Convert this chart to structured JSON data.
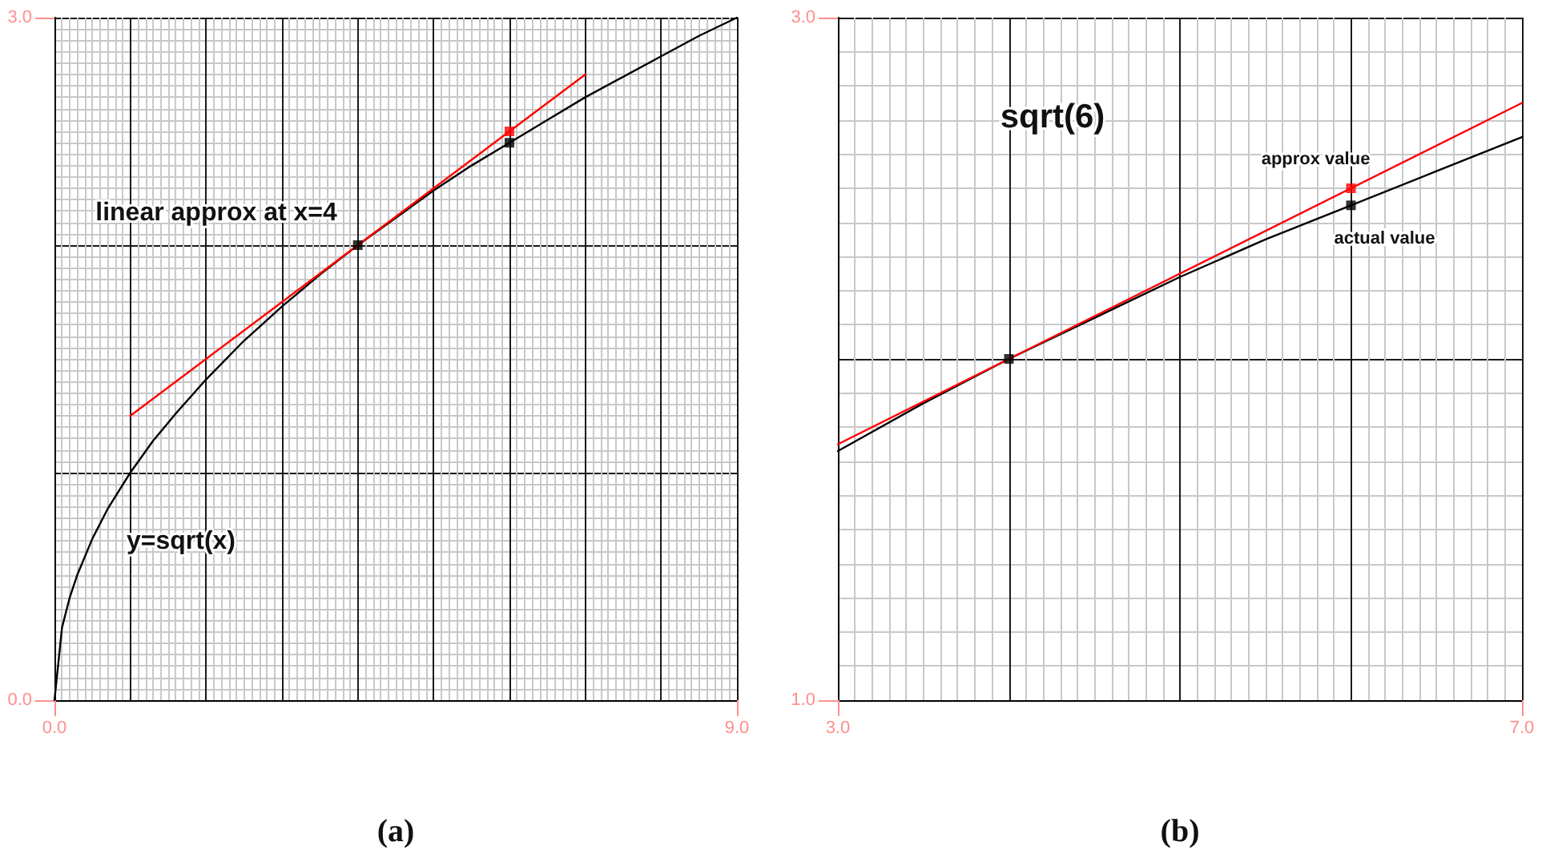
{
  "chart_data": [
    {
      "type": "line",
      "xlim": [
        0,
        9
      ],
      "ylim": [
        0,
        3
      ],
      "xticks": [
        {
          "value": 0,
          "label": "0.0"
        },
        {
          "value": 1,
          "label": null
        },
        {
          "value": 2,
          "label": null
        },
        {
          "value": 3,
          "label": null
        },
        {
          "value": 4,
          "label": null
        },
        {
          "value": 5,
          "label": null
        },
        {
          "value": 6,
          "label": null
        },
        {
          "value": 7,
          "label": null
        },
        {
          "value": 8,
          "label": null
        },
        {
          "value": 9,
          "label": "9.0"
        }
      ],
      "yticks": [
        {
          "value": 0,
          "label": "0.0"
        },
        {
          "value": 1,
          "label": null
        },
        {
          "value": 2,
          "label": null
        },
        {
          "value": 3,
          "label": "3.0"
        }
      ],
      "grid": true,
      "series": [
        {
          "color": "#000000",
          "x": [
            0,
            0.1,
            0.2,
            0.3,
            0.5,
            0.7,
            1,
            1.3,
            1.6,
            2,
            2.5,
            3,
            3.5,
            4,
            4.5,
            5,
            5.5,
            6,
            6.5,
            7,
            7.5,
            8,
            8.5,
            9
          ],
          "values": [
            0,
            0.32,
            0.45,
            0.55,
            0.71,
            0.84,
            1,
            1.14,
            1.26,
            1.41,
            1.58,
            1.73,
            1.87,
            2,
            2.12,
            2.24,
            2.35,
            2.45,
            2.55,
            2.65,
            2.74,
            2.83,
            2.92,
            3
          ]
        },
        {
          "color": "#ff0000",
          "x": [
            1,
            4,
            7
          ],
          "values": [
            1.25,
            2,
            2.75
          ]
        },
        {
          "type": "scatter",
          "marker": "square",
          "color": "#000000",
          "x": [
            4,
            6
          ],
          "values": [
            2,
            2.45
          ]
        },
        {
          "type": "scatter",
          "marker": "square",
          "color": "#ff0000",
          "x": [
            6
          ],
          "values": [
            2.5
          ]
        }
      ],
      "annotations": [
        "linear approx at x=4",
        "y=sqrt(x)",
        "(a)"
      ]
    },
    {
      "type": "line",
      "xlim": [
        3,
        7
      ],
      "ylim": [
        1,
        3
      ],
      "xticks": [
        {
          "value": 3,
          "label": "3.0"
        },
        {
          "value": 4,
          "label": null
        },
        {
          "value": 5,
          "label": null
        },
        {
          "value": 6,
          "label": null
        },
        {
          "value": 7,
          "label": "7.0"
        }
      ],
      "yticks": [
        {
          "value": 1,
          "label": "1.0"
        },
        {
          "value": 2,
          "label": null
        },
        {
          "value": 3,
          "label": "3.0"
        }
      ],
      "grid": true,
      "series": [
        {
          "color": "#000000",
          "x": [
            3,
            3.5,
            4,
            4.5,
            5,
            5.5,
            6,
            6.5,
            7
          ],
          "values": [
            1.73,
            1.87,
            2,
            2.12,
            2.24,
            2.35,
            2.45,
            2.55,
            2.65
          ]
        },
        {
          "color": "#ff0000",
          "x": [
            3,
            4,
            7
          ],
          "values": [
            1.75,
            2,
            2.75
          ]
        },
        {
          "type": "scatter",
          "marker": "square",
          "color": "#000000",
          "x": [
            4,
            6
          ],
          "values": [
            2,
            2.45
          ]
        },
        {
          "type": "scatter",
          "marker": "square",
          "color": "#ff0000",
          "x": [
            6
          ],
          "values": [
            2.5
          ]
        }
      ],
      "annotations": [
        "sqrt(6)",
        {
          "text": "approx value",
          "x": 6,
          "y": 2.5
        },
        {
          "text": "actual value",
          "x": 6,
          "y": 2.45
        },
        "(b)"
      ]
    }
  ]
}
